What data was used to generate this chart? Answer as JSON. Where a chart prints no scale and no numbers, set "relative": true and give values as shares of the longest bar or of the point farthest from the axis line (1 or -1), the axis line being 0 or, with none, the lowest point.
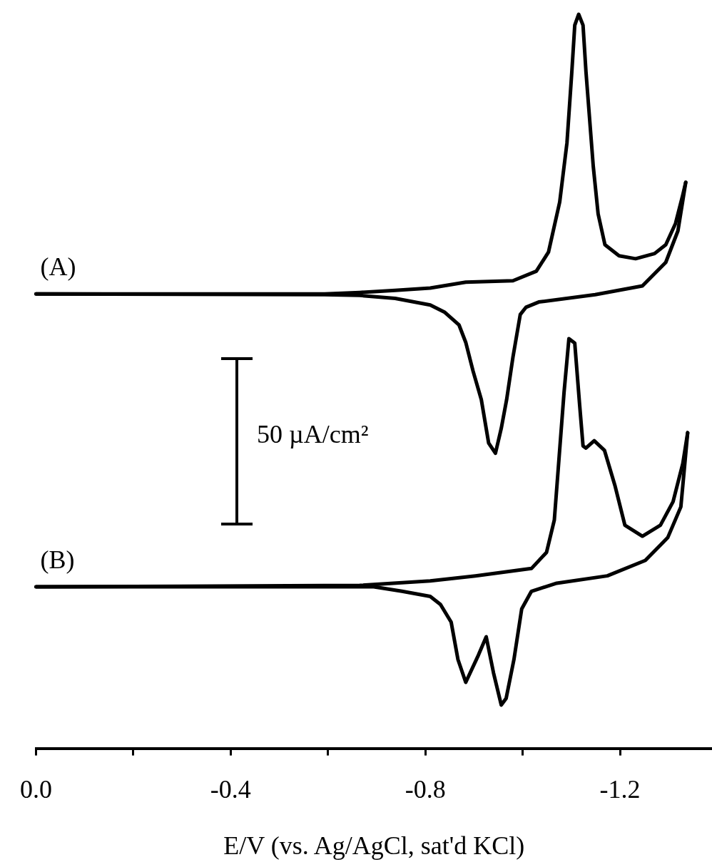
{
  "chart_data": {
    "type": "line",
    "xlabel": "E/V (vs. Ag/AgCl, sat'd KCl)",
    "relative": true,
    "xlim": [
      0,
      -1.389
    ],
    "xticks": [
      {
        "value": 0,
        "label": "0.0"
      },
      {
        "value": -0.2,
        "label": null
      },
      -0.4,
      {
        "value": -0.6,
        "label": null
      },
      -0.8,
      {
        "value": -1.0,
        "label": null
      },
      -1.2
    ],
    "annotations": [
      "50 µA/cm²"
    ],
    "series": [
      {
        "name": "(A)",
        "color": "#000000",
        "x": [
          0,
          -0.593,
          -0.665,
          -0.738,
          -0.81,
          -0.883,
          -0.98,
          -1.028,
          -1.053,
          -1.076,
          -1.091,
          -1.101,
          -1.107,
          -1.115,
          -1.124,
          -1.13,
          -1.145,
          -1.155,
          -1.169,
          -1.198,
          -1.232,
          -1.271,
          -1.294,
          -1.314,
          -1.329,
          -1.335
        ],
        "values": [
          0.619,
          0.619,
          0.621,
          0.624,
          0.627,
          0.635,
          0.637,
          0.65,
          0.676,
          0.744,
          0.825,
          0.922,
          0.985,
          1.0,
          0.985,
          0.922,
          0.793,
          0.728,
          0.686,
          0.671,
          0.667,
          0.674,
          0.686,
          0.715,
          0.754,
          0.771
        ]
      },
      {
        "color": "#000000",
        "x": [
          -1.335,
          -1.319,
          -1.294,
          -1.246,
          -1.149,
          -1.033,
          -1.007,
          -0.995,
          -0.98,
          -0.967,
          -0.956,
          -0.944,
          -0.93,
          -0.915,
          -0.898,
          -0.883,
          -0.869,
          -0.84,
          -0.81,
          -0.738,
          -0.665,
          -0.593,
          0
        ],
        "values": [
          0.771,
          0.705,
          0.662,
          0.63,
          0.618,
          0.608,
          0.601,
          0.591,
          0.533,
          0.475,
          0.436,
          0.402,
          0.416,
          0.475,
          0.514,
          0.553,
          0.577,
          0.594,
          0.604,
          0.613,
          0.617,
          0.618,
          0.619
        ]
      },
      {
        "name": "(B)",
        "color": "#000000",
        "x": [
          0,
          -0.665,
          -0.81,
          -0.903,
          -1.018,
          -1.049,
          -1.065,
          -1.075,
          -1.085,
          -1.095,
          -1.107,
          -1.117,
          -1.124,
          -1.13,
          -1.147,
          -1.168,
          -1.19,
          -1.21,
          -1.246,
          -1.283,
          -1.309,
          -1.329,
          -1.339
        ],
        "values": [
          0.22,
          0.222,
          0.228,
          0.235,
          0.245,
          0.267,
          0.311,
          0.398,
          0.485,
          0.558,
          0.552,
          0.468,
          0.412,
          0.409,
          0.419,
          0.406,
          0.357,
          0.304,
          0.289,
          0.304,
          0.336,
          0.388,
          0.43
        ]
      },
      {
        "color": "#000000",
        "x": [
          -1.339,
          -1.325,
          -1.298,
          -1.252,
          -1.174,
          -1.07,
          -1.018,
          -0.998,
          -0.982,
          -0.966,
          -0.956,
          -0.94,
          -0.925,
          -0.909,
          -0.883,
          -0.867,
          -0.853,
          -0.831,
          -0.81,
          -0.752,
          -0.694,
          0
        ],
        "values": [
          0.43,
          0.329,
          0.287,
          0.256,
          0.235,
          0.225,
          0.214,
          0.19,
          0.121,
          0.068,
          0.059,
          0.103,
          0.152,
          0.127,
          0.09,
          0.121,
          0.172,
          0.196,
          0.207,
          0.214,
          0.22,
          0.22
        ]
      }
    ]
  }
}
